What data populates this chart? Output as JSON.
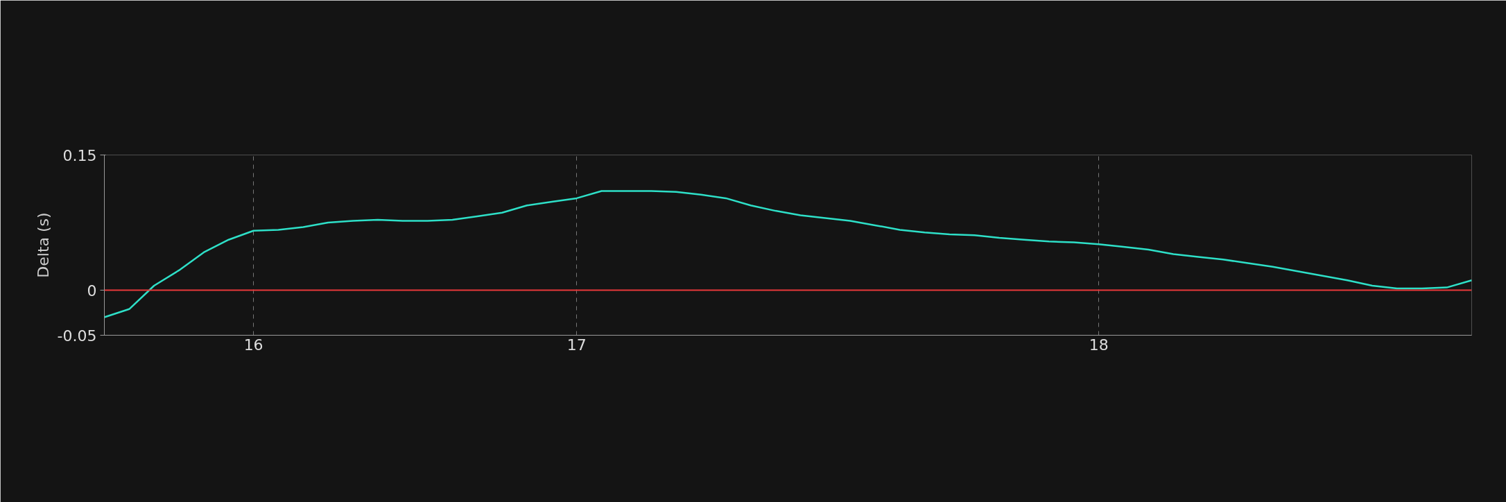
{
  "chart_data": {
    "type": "line",
    "ylabel": "Delta (s)",
    "categories": [
      null,
      null,
      null,
      null,
      null,
      null,
      "16",
      null,
      null,
      null,
      null,
      null,
      null,
      null,
      null,
      null,
      null,
      null,
      null,
      "17",
      null,
      null,
      null,
      null,
      null,
      null,
      null,
      null,
      null,
      null,
      null,
      null,
      null,
      null,
      null,
      null,
      null,
      null,
      null,
      null,
      "18",
      null,
      null,
      null,
      null,
      null,
      null,
      null,
      null,
      null,
      null,
      null,
      null,
      null,
      null,
      null
    ],
    "series": [
      {
        "color": "#2ee0c8",
        "values": [
          -0.03,
          -0.021,
          0.005,
          0.022,
          0.042,
          0.056,
          0.066,
          0.067,
          0.07,
          0.075,
          0.077,
          0.078,
          0.077,
          0.077,
          0.078,
          0.082,
          0.086,
          0.094,
          0.098,
          0.102,
          0.11,
          0.11,
          0.11,
          0.109,
          0.106,
          0.102,
          0.094,
          0.088,
          0.083,
          0.08,
          0.077,
          0.072,
          0.067,
          0.064,
          0.062,
          0.061,
          0.058,
          0.056,
          0.054,
          0.053,
          0.051,
          0.048,
          0.045,
          0.04,
          0.037,
          0.034,
          0.03,
          0.026,
          0.021,
          0.016,
          0.011,
          0.005,
          0.002,
          0.002,
          0.003,
          0.011
        ]
      }
    ],
    "ylim": [
      -0.05,
      0.15
    ],
    "yticks": [
      -0.05,
      0,
      0.15
    ],
    "ref_lines": [
      {
        "axis": "y",
        "value": 0,
        "color": "#e8383a"
      }
    ],
    "grid": "x",
    "line_style": "solid",
    "marker": "none"
  }
}
